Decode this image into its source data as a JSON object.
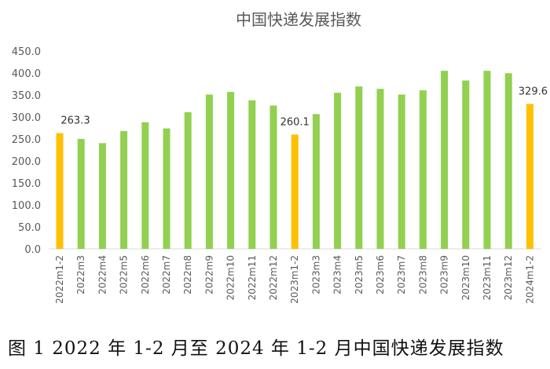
{
  "chart_data": {
    "type": "bar",
    "title": "中国快递发展指数",
    "categories": [
      "2022m1-2",
      "2022m3",
      "2022m4",
      "2022m5",
      "2022m6",
      "2022m7",
      "2022m8",
      "2022m9",
      "2022m10",
      "2022m11",
      "2022m12",
      "2023m1-2",
      "2023m3",
      "2023m4",
      "2023m5",
      "2023m6",
      "2023m7",
      "2023m8",
      "2023m9",
      "2023m10",
      "2023m11",
      "2023m12",
      "2024m1-2"
    ],
    "values": [
      263.3,
      250,
      240.5,
      268,
      288,
      274,
      311,
      351,
      357,
      338,
      326,
      260.1,
      306.5,
      355,
      369.5,
      364,
      351,
      360.5,
      405,
      383,
      405,
      399.5,
      329.6
    ],
    "highlighted": [
      "2022m1-2",
      "2023m1-2",
      "2024m1-2"
    ],
    "data_labels": {
      "2022m1-2": "263.3",
      "2023m1-2": "260.1",
      "2024m1-2": "329.6"
    },
    "ylim": [
      0,
      450
    ],
    "yticks": [
      "0.0",
      "50.0",
      "100.0",
      "150.0",
      "200.0",
      "250.0",
      "300.0",
      "350.0",
      "400.0",
      "450.0"
    ],
    "grid": false,
    "colors": {
      "default": "#92D050",
      "highlight": "#FFC000",
      "axis": "#D9D9D9",
      "text": "#595959"
    }
  },
  "caption": "图 1 2022 年 1-2 月至 2024 年 1-2 月中国快递发展指数"
}
